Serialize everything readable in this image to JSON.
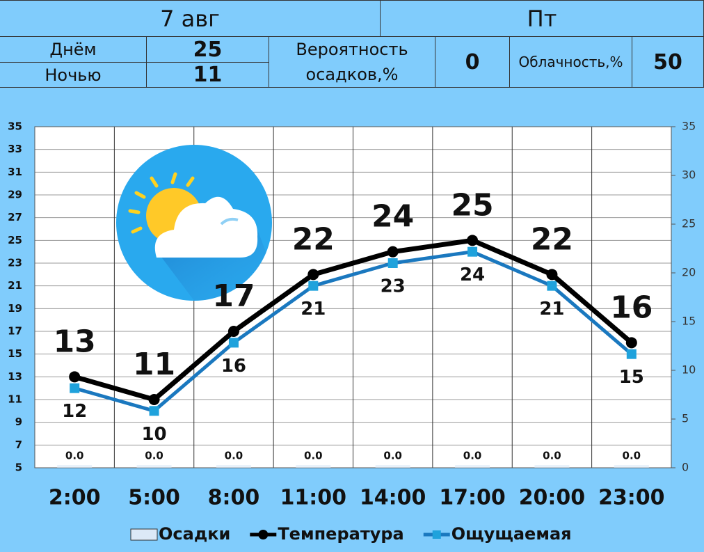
{
  "header": {
    "date": "7 авг",
    "weekday": "Пт",
    "day_label": "Днём",
    "day_value": 25,
    "night_label": "Ночью",
    "night_value": 11,
    "precip_label": "Вероятность осадков,%",
    "precip_value": 0,
    "cloud_label": "Облачность,%",
    "cloud_value": 50
  },
  "chart_data": {
    "type": "line",
    "categories": [
      "2:00",
      "5:00",
      "8:00",
      "11:00",
      "14:00",
      "17:00",
      "20:00",
      "23:00"
    ],
    "series": [
      {
        "name": "Осадки",
        "type": "bar",
        "axis": "y2",
        "color": "#dce9f7",
        "values": [
          0,
          0,
          0,
          0,
          0,
          0,
          0,
          0
        ],
        "value_labels": [
          "0.0",
          "0.0",
          "0.0",
          "0.0",
          "0.0",
          "0.0",
          "0.0",
          "0.0"
        ]
      },
      {
        "name": "Температура",
        "color": "#000000",
        "values": [
          13,
          11,
          17,
          22,
          24,
          25,
          22,
          16
        ]
      },
      {
        "name": "Ощущаемая",
        "color": "#1a78bf",
        "values": [
          12,
          10,
          16,
          21,
          23,
          24,
          21,
          15
        ]
      }
    ],
    "ylim": [
      5,
      35
    ],
    "yticks": [
      5,
      7,
      9,
      11,
      13,
      15,
      17,
      19,
      21,
      23,
      25,
      27,
      29,
      31,
      33,
      35
    ],
    "y2lim": [
      0,
      35
    ],
    "y2ticks": [
      0,
      5,
      10,
      15,
      20,
      25,
      30,
      35
    ],
    "grid": true
  }
}
